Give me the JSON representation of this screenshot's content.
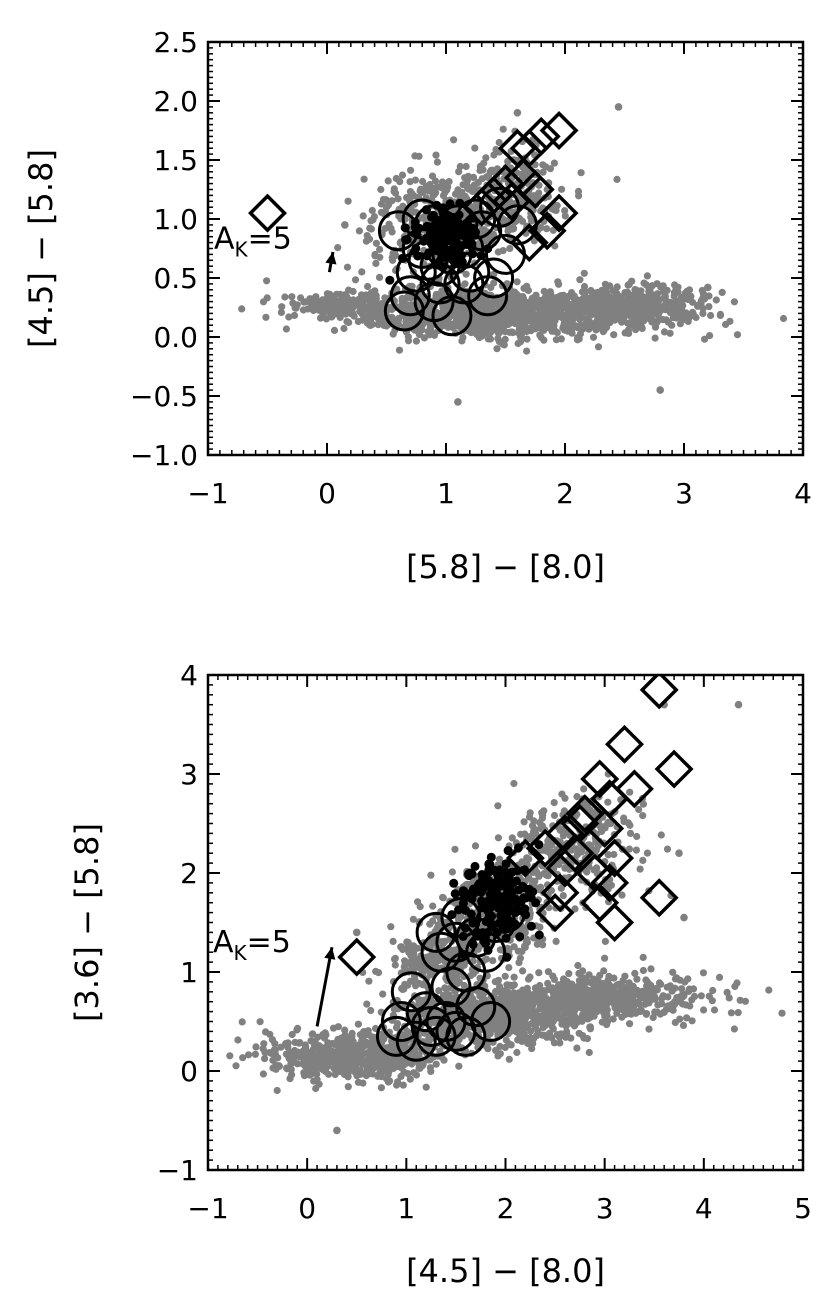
{
  "chart_data": [
    {
      "type": "scatter",
      "title": "",
      "xlabel": "[5.8] − [8.0]",
      "ylabel": "[4.5] − [5.8]",
      "xlim": [
        -1,
        4
      ],
      "ylim": [
        -1.0,
        2.5
      ],
      "x_ticks": [
        -1,
        0,
        1,
        2,
        3,
        4
      ],
      "x_tick_labels": [
        "−1",
        "0",
        "1",
        "2",
        "3",
        "4"
      ],
      "y_ticks": [
        -1.0,
        -0.5,
        0.0,
        0.5,
        1.0,
        1.5,
        2.0,
        2.5
      ],
      "y_tick_labels": [
        "−1.0",
        "−0.5",
        "0.0",
        "0.5",
        "1.0",
        "1.5",
        "2.0",
        "2.5"
      ],
      "grid": false,
      "colors": {
        "field": "#808080",
        "markers": "#000000"
      },
      "field_regions": [
        {
          "cx": 1.4,
          "cy": 0.2,
          "rx": 1.1,
          "ry": 0.19,
          "n": 1000
        },
        {
          "cx": 2.55,
          "cy": 0.27,
          "rx": 0.65,
          "ry": 0.15,
          "n": 420
        },
        {
          "cx": 0.9,
          "cy": 0.95,
          "rx": 0.55,
          "ry": 0.45,
          "n": 320
        },
        {
          "cx": 1.5,
          "cy": 1.2,
          "rx": 0.45,
          "ry": 0.35,
          "n": 260
        },
        {
          "cx": 0.1,
          "cy": 0.28,
          "rx": 0.38,
          "ry": 0.1,
          "n": 150
        }
      ],
      "field_outliers": [
        {
          "x": 2.45,
          "y": 1.95
        },
        {
          "x": 3.2,
          "y": 0.42
        },
        {
          "x": 2.8,
          "y": -0.45
        },
        {
          "x": 1.1,
          "y": -0.55
        },
        {
          "x": 0.15,
          "y": 0.95
        },
        {
          "x": 1.6,
          "y": 1.9
        }
      ],
      "series": [
        {
          "marker": "circle",
          "points": [
            {
              "x": 0.6,
              "y": 0.9
            },
            {
              "x": 0.75,
              "y": 0.55
            },
            {
              "x": 0.7,
              "y": 0.35
            },
            {
              "x": 0.65,
              "y": 0.22
            },
            {
              "x": 0.8,
              "y": 0.75
            },
            {
              "x": 0.9,
              "y": 0.95
            },
            {
              "x": 0.95,
              "y": 0.6
            },
            {
              "x": 1.05,
              "y": 0.7
            },
            {
              "x": 1.0,
              "y": 0.85
            },
            {
              "x": 1.1,
              "y": 0.95
            },
            {
              "x": 1.15,
              "y": 0.75
            },
            {
              "x": 1.2,
              "y": 0.55
            },
            {
              "x": 1.3,
              "y": 0.9
            },
            {
              "x": 1.25,
              "y": 1.0
            },
            {
              "x": 0.85,
              "y": 0.65
            },
            {
              "x": 1.05,
              "y": 0.18
            },
            {
              "x": 0.9,
              "y": 0.3
            },
            {
              "x": 1.4,
              "y": 0.5
            },
            {
              "x": 1.5,
              "y": 0.7
            },
            {
              "x": 1.35,
              "y": 0.35
            },
            {
              "x": 1.15,
              "y": 0.45
            },
            {
              "x": 0.8,
              "y": 1.0
            },
            {
              "x": 0.95,
              "y": 0.45
            },
            {
              "x": 1.6,
              "y": 0.95
            },
            {
              "x": 1.45,
              "y": 1.1
            }
          ]
        },
        {
          "marker": "diamond",
          "points": [
            {
              "x": -0.5,
              "y": 1.05
            },
            {
              "x": 1.6,
              "y": 1.6
            },
            {
              "x": 1.8,
              "y": 1.7
            },
            {
              "x": 1.95,
              "y": 1.75
            },
            {
              "x": 1.5,
              "y": 1.3
            },
            {
              "x": 1.65,
              "y": 1.35
            },
            {
              "x": 1.75,
              "y": 1.25
            },
            {
              "x": 1.4,
              "y": 1.2
            },
            {
              "x": 1.55,
              "y": 1.15
            },
            {
              "x": 1.85,
              "y": 0.9
            },
            {
              "x": 1.95,
              "y": 1.05
            },
            {
              "x": 1.7,
              "y": 0.8
            },
            {
              "x": 1.3,
              "y": 1.1
            },
            {
              "x": 1.7,
              "y": 1.6
            }
          ]
        },
        {
          "marker": "filled-cloud",
          "center": {
            "x": 1.0,
            "y": 0.85
          },
          "spread": {
            "x": 0.25,
            "y": 0.2
          },
          "n": 140
        }
      ],
      "annotations": [
        {
          "text": "A",
          "sub": "K",
          "suffix": "=5",
          "x": -0.95,
          "y": 0.75
        }
      ],
      "arrow": {
        "from": {
          "x": 0.02,
          "y": 0.55
        },
        "to": {
          "x": 0.05,
          "y": 0.72
        }
      }
    },
    {
      "type": "scatter",
      "title": "",
      "xlabel": "[4.5] − [8.0]",
      "ylabel": "[3.6] − [5.8]",
      "xlim": [
        -1,
        5
      ],
      "ylim": [
        -1,
        4
      ],
      "x_ticks": [
        -1,
        0,
        1,
        2,
        3,
        4,
        5
      ],
      "x_tick_labels": [
        "−1",
        "0",
        "1",
        "2",
        "3",
        "4",
        "5"
      ],
      "y_ticks": [
        -1,
        0,
        1,
        2,
        3,
        4
      ],
      "y_tick_labels": [
        "−1",
        "0",
        "1",
        "2",
        "3",
        "4"
      ],
      "grid": false,
      "colors": {
        "field": "#808080",
        "markers": "#000000"
      },
      "field_regions": [
        {
          "cx": 0.5,
          "cy": 0.15,
          "rx": 0.8,
          "ry": 0.22,
          "n": 600
        },
        {
          "cx": 1.8,
          "cy": 0.55,
          "rx": 0.9,
          "ry": 0.28,
          "n": 700
        },
        {
          "cx": 3.0,
          "cy": 0.75,
          "rx": 0.9,
          "ry": 0.22,
          "n": 500
        },
        {
          "cx": 1.9,
          "cy": 1.6,
          "rx": 0.55,
          "ry": 0.45,
          "n": 380
        },
        {
          "cx": 2.7,
          "cy": 2.3,
          "rx": 0.55,
          "ry": 0.5,
          "n": 260
        },
        {
          "cx": 1.3,
          "cy": 1.1,
          "rx": 0.5,
          "ry": 0.3,
          "n": 200
        }
      ],
      "field_outliers": [
        {
          "x": 4.35,
          "y": 3.7
        },
        {
          "x": 3.6,
          "y": 3.7
        },
        {
          "x": 0.3,
          "y": -0.6
        },
        {
          "x": 3.8,
          "y": 1.55
        },
        {
          "x": 3.75,
          "y": 2.2
        },
        {
          "x": 0.5,
          "y": 1.4
        }
      ],
      "series": [
        {
          "marker": "circle",
          "points": [
            {
              "x": 1.3,
              "y": 1.4
            },
            {
              "x": 1.5,
              "y": 1.3
            },
            {
              "x": 1.35,
              "y": 1.2
            },
            {
              "x": 1.7,
              "y": 1.35
            },
            {
              "x": 1.6,
              "y": 1.0
            },
            {
              "x": 1.45,
              "y": 0.85
            },
            {
              "x": 1.8,
              "y": 1.2
            },
            {
              "x": 1.05,
              "y": 0.8
            },
            {
              "x": 1.2,
              "y": 0.6
            },
            {
              "x": 0.95,
              "y": 0.5
            },
            {
              "x": 0.9,
              "y": 0.35
            },
            {
              "x": 1.1,
              "y": 0.3
            },
            {
              "x": 1.3,
              "y": 0.35
            },
            {
              "x": 1.5,
              "y": 0.4
            },
            {
              "x": 1.7,
              "y": 0.65
            },
            {
              "x": 1.6,
              "y": 0.35
            },
            {
              "x": 1.85,
              "y": 0.5
            },
            {
              "x": 1.25,
              "y": 0.45
            },
            {
              "x": 1.9,
              "y": 1.5
            },
            {
              "x": 2.0,
              "y": 1.6
            },
            {
              "x": 1.55,
              "y": 1.55
            },
            {
              "x": 1.4,
              "y": 0.5
            }
          ]
        },
        {
          "marker": "diamond",
          "points": [
            {
              "x": 0.5,
              "y": 1.15
            },
            {
              "x": 3.55,
              "y": 3.85
            },
            {
              "x": 3.2,
              "y": 3.3
            },
            {
              "x": 3.7,
              "y": 3.05
            },
            {
              "x": 2.95,
              "y": 2.95
            },
            {
              "x": 3.3,
              "y": 2.85
            },
            {
              "x": 3.05,
              "y": 2.75
            },
            {
              "x": 2.8,
              "y": 2.6
            },
            {
              "x": 2.6,
              "y": 2.4
            },
            {
              "x": 2.4,
              "y": 2.25
            },
            {
              "x": 3.0,
              "y": 2.45
            },
            {
              "x": 2.7,
              "y": 2.2
            },
            {
              "x": 2.9,
              "y": 2.0
            },
            {
              "x": 3.1,
              "y": 2.15
            },
            {
              "x": 2.55,
              "y": 1.8
            },
            {
              "x": 3.05,
              "y": 1.9
            },
            {
              "x": 2.95,
              "y": 1.7
            },
            {
              "x": 3.1,
              "y": 1.5
            },
            {
              "x": 3.55,
              "y": 1.75
            },
            {
              "x": 2.5,
              "y": 1.6
            },
            {
              "x": 2.2,
              "y": 2.15
            },
            {
              "x": 2.75,
              "y": 2.5
            },
            {
              "x": 2.6,
              "y": 2.05
            }
          ]
        },
        {
          "marker": "filled-cloud",
          "center": {
            "x": 1.9,
            "y": 1.75
          },
          "spread": {
            "x": 0.3,
            "y": 0.35
          },
          "n": 170
        }
      ],
      "annotations": [
        {
          "text": "A",
          "sub": "K",
          "suffix": "=5",
          "x": -0.95,
          "y": 1.2
        }
      ],
      "arrow": {
        "from": {
          "x": 0.1,
          "y": 0.45
        },
        "to": {
          "x": 0.25,
          "y": 1.25
        }
      }
    }
  ]
}
